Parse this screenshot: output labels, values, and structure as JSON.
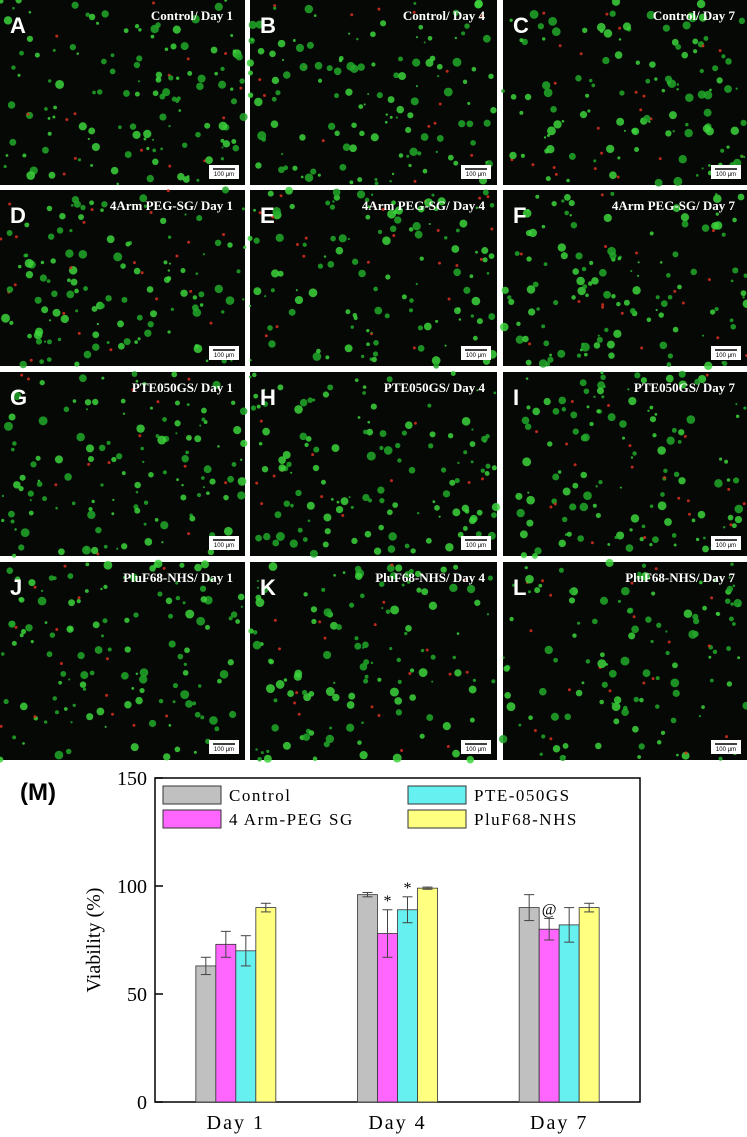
{
  "panels": [
    {
      "letter": "A",
      "caption": "Control/ Day 1",
      "scale": "100 μm"
    },
    {
      "letter": "B",
      "caption": "Control/ Day 4",
      "scale": "100 μm"
    },
    {
      "letter": "C",
      "caption": "Control/ Day 7",
      "scale": "100 μm"
    },
    {
      "letter": "D",
      "caption": "4Arm PEG-SG/ Day 1",
      "scale": "100 μm"
    },
    {
      "letter": "E",
      "caption": "4Arm PEG-SG/ Day 4",
      "scale": "100 μm"
    },
    {
      "letter": "F",
      "caption": "4Arm PEG-SG/ Day 7",
      "scale": "100 μm"
    },
    {
      "letter": "G",
      "caption": "PTE050GS/ Day 1",
      "scale": "100 μm"
    },
    {
      "letter": "H",
      "caption": "PTE050GS/ Day 4",
      "scale": "100 μm"
    },
    {
      "letter": "I",
      "caption": "PTE050GS/ Day 7",
      "scale": "100 μm"
    },
    {
      "letter": "J",
      "caption": "PluF68-NHS/ Day 1",
      "scale": "100 μm"
    },
    {
      "letter": "K",
      "caption": "PluF68-NHS/ Day 4",
      "scale": "100 μm"
    },
    {
      "letter": "L",
      "caption": "PluF68-NHS/ Day 7",
      "scale": "100 μm"
    }
  ],
  "chart_label": "(M)",
  "chart_data": {
    "type": "bar",
    "ylabel": "Viability (%)",
    "categories": [
      "Day 1",
      "Day 4",
      "Day 7"
    ],
    "series": [
      {
        "name": "Control",
        "color": "#c0c0c0",
        "values": [
          63,
          96,
          90
        ],
        "errors": [
          4,
          1,
          6
        ],
        "markers": [
          null,
          null,
          null
        ]
      },
      {
        "name": "4 Arm-PEG SG",
        "color": "#ff66ff",
        "values": [
          73,
          78,
          80
        ],
        "errors": [
          6,
          11,
          5
        ],
        "markers": [
          null,
          "*",
          "@"
        ]
      },
      {
        "name": "PTE-050GS",
        "color": "#66f0f0",
        "values": [
          70,
          89,
          82
        ],
        "errors": [
          7,
          6,
          8
        ],
        "markers": [
          null,
          "*",
          null
        ]
      },
      {
        "name": "PluF68-NHS",
        "color": "#ffff80",
        "values": [
          90,
          99,
          90
        ],
        "errors": [
          2,
          0.5,
          2
        ],
        "markers": [
          null,
          null,
          null
        ]
      }
    ],
    "ylim": [
      0,
      150
    ],
    "yticks": [
      0,
      50,
      100,
      150
    ]
  }
}
